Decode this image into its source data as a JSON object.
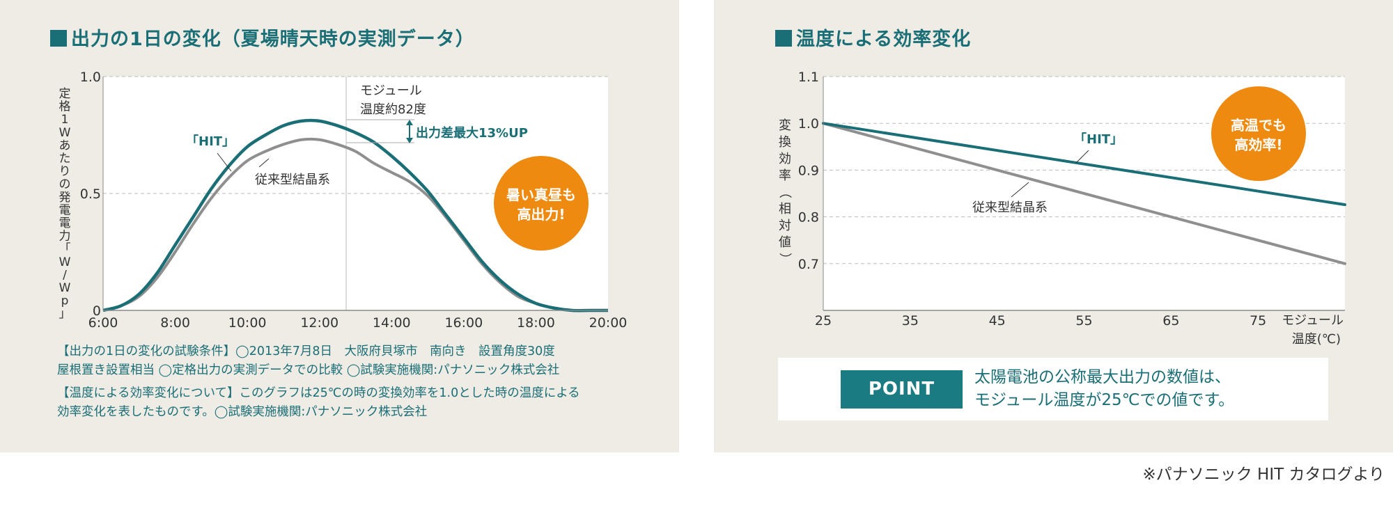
{
  "left_panel": {
    "title": "出力の1日の変化（夏場晴天時の実測データ）",
    "notes": [
      "【出力の1日の変化の試験条件】◯2013年7月8日　大阪府貝塚市　南向き　設置角度30度",
      "屋根置き設置相当 ◯定格出力の実測データでの比較 ◯試験実施機関:パナソニック株式会社",
      "【温度による効率変化について】このグラフは25℃の時の変換効率を1.0とした時の温度による",
      "効率変化を表したものです。◯試験実施機関:パナソニック株式会社"
    ]
  },
  "right_panel": {
    "title": "温度による効率変化",
    "point_badge": "POINT",
    "point_text": [
      "太陽電池の公称最大出力の数値は、",
      "モジュール温度が25℃での値です。"
    ]
  },
  "source_note": "※パナソニック HIT カタログより",
  "colors": {
    "teal": "#1a6e76",
    "gray": "#8f8f8f",
    "orange": "#ee8a0f",
    "panel_bg": "#efece6"
  },
  "chart_data": [
    {
      "type": "line",
      "title": "出力の1日の変化（夏場晴天時の実測データ）",
      "ylabel": "定格1Wあたりの発電電力「W/Wp」",
      "ylim": [
        0,
        1.0
      ],
      "yticks": [
        "0",
        "0.5",
        "1.0"
      ],
      "xlim": [
        6,
        20
      ],
      "xticks": [
        "6:00",
        "8:00",
        "10:00",
        "12:00",
        "14:00",
        "16:00",
        "18:00",
        "20:00"
      ],
      "grid": "dashed",
      "series": [
        {
          "name": "「HIT」",
          "color": "#1a6e76",
          "x": [
            6,
            6.5,
            7,
            7.5,
            8,
            8.5,
            9,
            9.5,
            10,
            10.5,
            11,
            11.5,
            12,
            12.5,
            13,
            13.5,
            14,
            14.5,
            15,
            15.5,
            16,
            16.5,
            17,
            17.5,
            18,
            18.5,
            19,
            19.5,
            20
          ],
          "y": [
            0.0,
            0.02,
            0.07,
            0.16,
            0.28,
            0.4,
            0.52,
            0.62,
            0.7,
            0.75,
            0.79,
            0.81,
            0.81,
            0.79,
            0.76,
            0.72,
            0.66,
            0.59,
            0.51,
            0.41,
            0.31,
            0.21,
            0.13,
            0.07,
            0.03,
            0.01,
            0.0,
            0.0,
            0.0
          ]
        },
        {
          "name": "従来型結晶系",
          "color": "#8f8f8f",
          "x": [
            6,
            6.5,
            7,
            7.5,
            8,
            8.5,
            9,
            9.5,
            10,
            10.5,
            11,
            11.5,
            12,
            12.5,
            13,
            13.5,
            14,
            14.5,
            15,
            15.5,
            16,
            16.5,
            17,
            17.5,
            18,
            18.5,
            19,
            19.5,
            20
          ],
          "y": [
            0.0,
            0.02,
            0.06,
            0.14,
            0.25,
            0.37,
            0.48,
            0.57,
            0.64,
            0.68,
            0.71,
            0.73,
            0.73,
            0.71,
            0.68,
            0.63,
            0.59,
            0.55,
            0.49,
            0.4,
            0.3,
            0.2,
            0.12,
            0.06,
            0.03,
            0.01,
            0.0,
            0.0,
            0.0
          ]
        }
      ],
      "annotations": [
        "モジュール",
        "温度約82度",
        "出力差最大13%UP"
      ],
      "callout": [
        "暑い真昼も",
        "高出力!"
      ]
    },
    {
      "type": "line",
      "title": "温度による効率変化",
      "ylabel": "変換効率（相対値）",
      "ylim": [
        0.6,
        1.1
      ],
      "yticks": [
        "0.7",
        "0.8",
        "0.9",
        "1.0",
        "1.1"
      ],
      "xlim": [
        25,
        85
      ],
      "xticks": [
        "25",
        "35",
        "45",
        "55",
        "65",
        "75"
      ],
      "xlabel": [
        "モジュール",
        "温度(℃)"
      ],
      "grid": "dashed",
      "series": [
        {
          "name": "「HIT」",
          "color": "#1a6e76",
          "x": [
            25,
            85
          ],
          "y": [
            1.0,
            0.826
          ]
        },
        {
          "name": "従来型結晶系",
          "color": "#8f8f8f",
          "x": [
            25,
            85
          ],
          "y": [
            1.0,
            0.7
          ]
        }
      ],
      "callout": [
        "高温でも",
        "高効率!"
      ]
    }
  ]
}
